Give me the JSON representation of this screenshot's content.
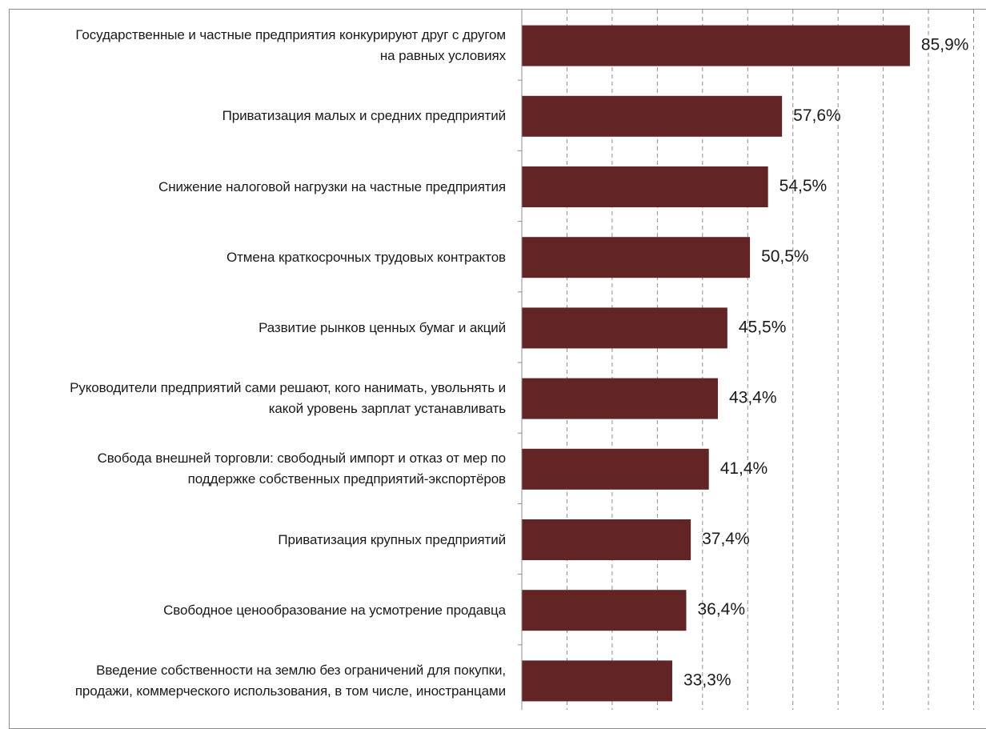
{
  "chart_data": {
    "type": "bar",
    "orientation": "horizontal",
    "categories": [
      "Государственные и частные предприятия конкурируют друг с другом на равных условиях",
      "Приватизация малых и средних предприятий",
      "Снижение налоговой нагрузки на частные предприятия",
      "Отмена краткосрочных трудовых контрактов",
      "Развитие рынков ценных бумаг и акций",
      "Руководители предприятий сами решают, кого нанимать, увольнять и какой уровень зарплат устанавливать",
      "Свобода внешней торговли: свободный импорт и отказ от мер по поддержке собственных предприятий-экспортёров",
      "Приватизация крупных предприятий",
      "Свободное ценообразование на усмотрение продавца",
      "Введение собственности на землю без ограничений для покупки, продажи, коммерческого использования, в том числе, иностранцами"
    ],
    "values": [
      85.9,
      57.6,
      54.5,
      50.5,
      45.5,
      43.4,
      41.4,
      37.4,
      36.4,
      33.3
    ],
    "value_labels": [
      "85,9%",
      "57,6%",
      "54,5%",
      "50,5%",
      "45,5%",
      "43,4%",
      "41,4%",
      "37,4%",
      "36,4%",
      "33,3%"
    ],
    "xlim": [
      0,
      100
    ],
    "grid": "vertical dashed",
    "bar_color": "#632425",
    "grid_color": "#8c8c8c"
  }
}
